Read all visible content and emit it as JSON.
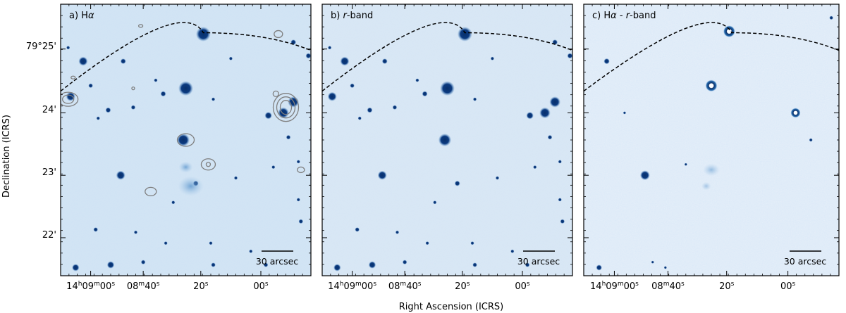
{
  "figure": {
    "x_axis_label": "Right Ascension (ICRS)",
    "y_axis_label": "Declination (ICRS)",
    "y_tick_labels": [
      "79°25'",
      "24'",
      "23'",
      "22'"
    ],
    "x_tick_labels": [
      "14h09m00s",
      "08m40s",
      "20s",
      "00s"
    ],
    "scale_bar_label": "30 arcsec"
  },
  "panels": [
    {
      "id": "a",
      "prefix": "a) H",
      "greek": "α",
      "suffix": "",
      "show_contours": true,
      "style": "halpha"
    },
    {
      "id": "b",
      "prefix": "b) ",
      "greek": "",
      "suffix": "r-band",
      "show_contours": false,
      "style": "rband"
    },
    {
      "id": "c",
      "prefix": "c) H",
      "greek": "α",
      "suffix": " - r-band",
      "show_contours": false,
      "style": "diff"
    }
  ],
  "colors": {
    "background_halpha": "#d4e5f4",
    "background_rband": "#dae8f5",
    "background_diff": "#e6eff9",
    "source": "#08306b",
    "contour": "#7f7f7f",
    "dashed_line": "#000000"
  }
}
